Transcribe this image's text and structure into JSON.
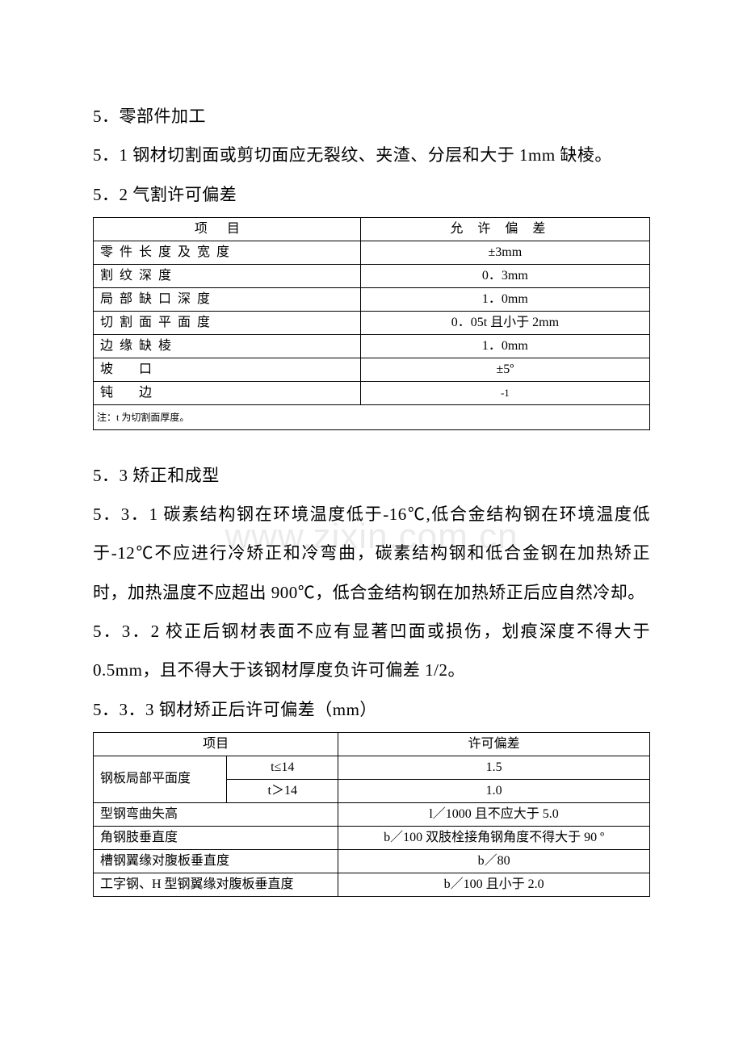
{
  "watermark": "www.zixin.com.cn",
  "s5": {
    "h": "5．零部件加工",
    "s51": "5．1 钢材切割面或剪切面应无裂纹、夹渣、分层和大于 1mm 缺棱。",
    "s52": "5．2 气割许可偏差",
    "s53": "5．3 矫正和成型",
    "s531": "5．3．1 碳素结构钢在环境温度低于-16℃,低合金结构钢在环境温度低于-12℃不应进行冷矫正和冷弯曲，碳素结构钢和低合金钢在加热矫正时，加热温度不应超出 900℃，低合金结构钢在加热矫正后应自然冷却。",
    "s532": "5．3．2 校正后钢材表面不应有显著凹面或损伤，划痕深度不得大于 0.5mm，且不得大于该钢材厚度负许可偏差 1/2。",
    "s533": "5．3．3 钢材矫正后许可偏差（mm）"
  },
  "table1": {
    "header": {
      "item": "项目",
      "val": "允许偏差"
    },
    "rows": [
      {
        "item": "零件长度及宽度",
        "val": "±3mm"
      },
      {
        "item": "割纹深度",
        "val": "0．3mm"
      },
      {
        "item": "局部缺口深度",
        "val": "1．0mm"
      },
      {
        "item": "切割面平面度",
        "val": "0．05t 且小于 2mm"
      },
      {
        "item": "边缘缺棱",
        "val": "1．0mm"
      },
      {
        "item": "坡　　口",
        "val": "±5º"
      },
      {
        "item": "钝　　边",
        "val": "-1"
      }
    ],
    "note": "注：t 为切割面厚度。"
  },
  "table2": {
    "header": {
      "item": "项目",
      "val": "许可偏差"
    },
    "row1": {
      "l": "钢板局部平面度",
      "c": "t≤14",
      "v": "1.5"
    },
    "row2": {
      "c": "t＞14",
      "v": "1.0"
    },
    "row3": {
      "l": " 型钢弯曲失高",
      "v": "l／1000 且不应大于 5.0"
    },
    "row4": {
      "l": " 角钢肢垂直度",
      "v": "b／100 双肢栓接角钢角度不得大于 90 º"
    },
    "row5": {
      "l": " 槽钢翼缘对腹板垂直度",
      "v": "b／80"
    },
    "row6": {
      "l": " 工字钢、H 型钢翼缘对腹板垂直度",
      "v": "b／100 且小于 2.0"
    }
  }
}
